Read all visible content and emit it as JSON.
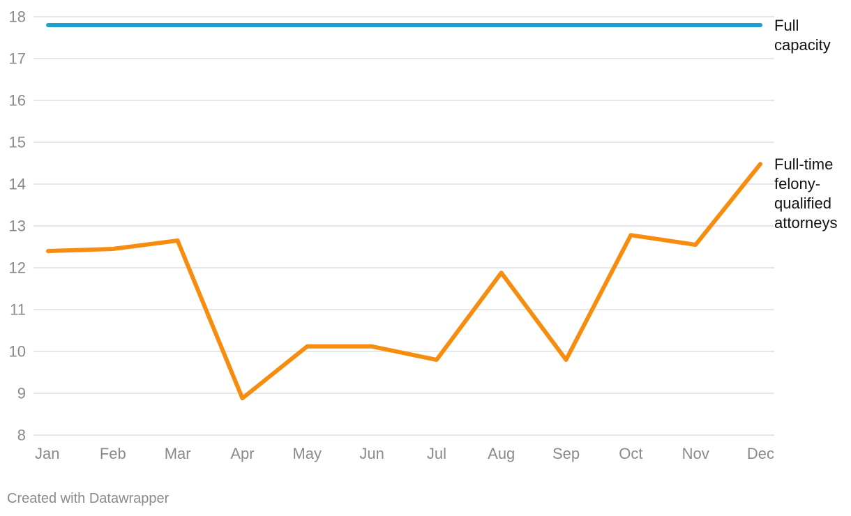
{
  "chart_data": {
    "type": "line",
    "categories": [
      "Jan",
      "Feb",
      "Mar",
      "Apr",
      "May",
      "Jun",
      "Jul",
      "Aug",
      "Sep",
      "Oct",
      "Nov",
      "Dec"
    ],
    "y_ticks": [
      "8",
      "9",
      "10",
      "11",
      "12",
      "13",
      "14",
      "15",
      "16",
      "17",
      "18"
    ],
    "ylim": [
      8,
      18
    ],
    "grid": true,
    "legend": "direct-labels-right",
    "series": [
      {
        "name": "Full capacity",
        "label_lines": [
          "Full",
          "capacity"
        ],
        "color": "#1f9fce",
        "values": [
          17.8,
          17.8,
          17.8,
          17.8,
          17.8,
          17.8,
          17.8,
          17.8,
          17.8,
          17.8,
          17.8,
          17.8
        ]
      },
      {
        "name": "Full-time felony-qualified attorneys",
        "label_lines": [
          "Full-time",
          "felony-",
          "qualified",
          "attorneys"
        ],
        "color": "#f68d0f",
        "values": [
          12.4,
          12.45,
          12.65,
          8.88,
          10.12,
          10.12,
          9.8,
          11.88,
          9.8,
          12.78,
          12.55,
          14.48
        ]
      }
    ]
  },
  "footer": {
    "credit": "Created with Datawrapper"
  }
}
